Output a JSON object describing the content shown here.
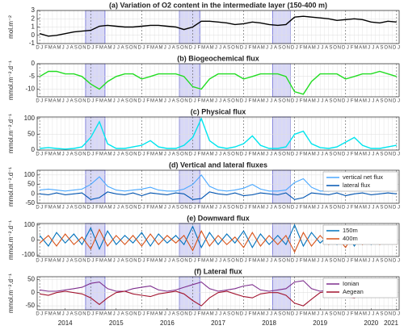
{
  "chart_data": [
    {
      "type": "line",
      "title": "(a) Variation of O2 content in the intermediate layer (150-400 m)",
      "ylabel": "mol.m⁻²",
      "months": [
        "J",
        "F",
        "M",
        "A",
        "M",
        "J",
        "J",
        "A",
        "S",
        "O",
        "N",
        "D"
      ],
      "x": [
        2014.0,
        2014.17,
        2014.33,
        2014.5,
        2014.67,
        2014.83,
        2015.0,
        2015.17,
        2015.33,
        2015.5,
        2015.67,
        2015.83,
        2016.0,
        2016.17,
        2016.33,
        2016.5,
        2016.67,
        2016.83,
        2017.0,
        2017.17,
        2017.33,
        2017.5,
        2017.67,
        2017.83,
        2018.0,
        2018.17,
        2018.33,
        2018.5,
        2018.67,
        2018.83,
        2019.0,
        2019.17,
        2019.33,
        2019.5,
        2019.67,
        2019.83,
        2020.0,
        2020.17,
        2020.33,
        2020.5,
        2020.67,
        2020.83,
        2021.0
      ],
      "series": [
        {
          "name": "O2",
          "color": "#000000",
          "values": [
            0.2,
            -0.1,
            0.0,
            0.2,
            0.4,
            0.5,
            0.6,
            1.1,
            1.2,
            1.1,
            1.0,
            1.0,
            1.1,
            1.2,
            1.2,
            1.1,
            1.0,
            0.7,
            1.0,
            1.7,
            1.7,
            1.6,
            1.5,
            1.3,
            1.4,
            1.6,
            1.5,
            1.3,
            1.2,
            1.3,
            2.2,
            2.3,
            2.2,
            2.1,
            2.0,
            1.8,
            1.9,
            2.0,
            1.9,
            1.6,
            1.5,
            1.7,
            1.6
          ]
        }
      ],
      "xlim": [
        2013.95,
        2021.05
      ],
      "ylim": [
        -1,
        3
      ],
      "yticks": [
        -1,
        0,
        1,
        2,
        3
      ],
      "highlights": [
        [
          2014.9,
          2015.28
        ],
        [
          2016.74,
          2017.14
        ],
        [
          2018.57,
          2018.92
        ]
      ],
      "grid": true
    },
    {
      "type": "line",
      "title": "(b) Biogeochemical flux",
      "ylabel": "mmol.m⁻².d⁻¹",
      "months": [
        "J",
        "F",
        "M",
        "A",
        "M",
        "J",
        "J",
        "A",
        "S",
        "O",
        "N",
        "D"
      ],
      "x": [
        2014.0,
        2014.17,
        2014.33,
        2014.5,
        2014.67,
        2014.83,
        2015.0,
        2015.17,
        2015.33,
        2015.5,
        2015.67,
        2015.83,
        2016.0,
        2016.17,
        2016.33,
        2016.5,
        2016.67,
        2016.83,
        2017.0,
        2017.17,
        2017.33,
        2017.5,
        2017.67,
        2017.83,
        2018.0,
        2018.17,
        2018.33,
        2018.5,
        2018.67,
        2018.83,
        2019.0,
        2019.17,
        2019.33,
        2019.5,
        2019.67,
        2019.83,
        2020.0,
        2020.17,
        2020.33,
        2020.5,
        2020.67,
        2020.83,
        2021.0
      ],
      "series": [
        {
          "name": "Biogeochemical",
          "color": "#22dd22",
          "values": [
            -5,
            -3,
            -3,
            -4,
            -4,
            -5,
            -8,
            -10,
            -7,
            -5,
            -4,
            -4,
            -6,
            -5,
            -4,
            -4,
            -4,
            -5,
            -9,
            -10,
            -6,
            -4,
            -4,
            -4,
            -6,
            -5,
            -4,
            -4,
            -4,
            -5,
            -11,
            -12,
            -7,
            -4,
            -4,
            -4,
            -6,
            -5,
            -4,
            -4,
            -3,
            -4,
            -5
          ]
        }
      ],
      "xlim": [
        2013.95,
        2021.05
      ],
      "ylim": [
        -13,
        0
      ],
      "yticks": [
        -10,
        -5,
        0
      ],
      "highlights": [
        [
          2014.9,
          2015.28
        ],
        [
          2016.74,
          2017.14
        ],
        [
          2018.57,
          2018.92
        ]
      ],
      "grid": true
    },
    {
      "type": "line",
      "title": "(c) Physical flux",
      "ylabel": "mmol.m⁻².d⁻¹",
      "months": [
        "J",
        "F",
        "M",
        "A",
        "M",
        "J",
        "J",
        "A",
        "S",
        "O",
        "N",
        "D"
      ],
      "x": [
        2014.0,
        2014.17,
        2014.33,
        2014.5,
        2014.67,
        2014.83,
        2015.0,
        2015.17,
        2015.33,
        2015.5,
        2015.67,
        2015.83,
        2016.0,
        2016.17,
        2016.33,
        2016.5,
        2016.67,
        2016.83,
        2017.0,
        2017.17,
        2017.33,
        2017.5,
        2017.67,
        2017.83,
        2018.0,
        2018.17,
        2018.33,
        2018.5,
        2018.67,
        2018.83,
        2019.0,
        2019.17,
        2019.33,
        2019.5,
        2019.67,
        2019.83,
        2020.0,
        2020.17,
        2020.33,
        2020.5,
        2020.67,
        2020.83,
        2021.0
      ],
      "series": [
        {
          "name": "Physical",
          "color": "#00e5ee",
          "values": [
            5,
            8,
            5,
            3,
            5,
            10,
            40,
            90,
            20,
            5,
            5,
            10,
            15,
            30,
            10,
            5,
            5,
            15,
            40,
            100,
            30,
            10,
            5,
            10,
            20,
            45,
            15,
            5,
            5,
            10,
            50,
            60,
            20,
            8,
            5,
            10,
            25,
            40,
            15,
            5,
            5,
            10,
            15
          ]
        }
      ],
      "xlim": [
        2013.95,
        2021.05
      ],
      "ylim": [
        0,
        105
      ],
      "yticks": [
        0,
        50,
        100
      ],
      "highlights": [
        [
          2014.9,
          2015.28
        ],
        [
          2016.74,
          2017.14
        ],
        [
          2018.57,
          2018.92
        ]
      ],
      "grid": true
    },
    {
      "type": "line",
      "title": "(d) Vertical and lateral fluxes",
      "ylabel": "mmol.m⁻².d⁻¹",
      "months": [
        "J",
        "F",
        "M",
        "A",
        "M",
        "J",
        "J",
        "A",
        "S",
        "O",
        "N",
        "D"
      ],
      "x": [
        2014.0,
        2014.17,
        2014.33,
        2014.5,
        2014.67,
        2014.83,
        2015.0,
        2015.17,
        2015.33,
        2015.5,
        2015.67,
        2015.83,
        2016.0,
        2016.17,
        2016.33,
        2016.5,
        2016.67,
        2016.83,
        2017.0,
        2017.17,
        2017.33,
        2017.5,
        2017.67,
        2017.83,
        2018.0,
        2018.17,
        2018.33,
        2018.5,
        2018.67,
        2018.83,
        2019.0,
        2019.17,
        2019.33,
        2019.5,
        2019.67,
        2019.83,
        2020.0,
        2020.17,
        2020.33,
        2020.5,
        2020.67,
        2020.83,
        2021.0
      ],
      "series": [
        {
          "name": "vertical net flux",
          "color": "#4aa8ff",
          "values": [
            20,
            25,
            20,
            15,
            20,
            25,
            50,
            90,
            40,
            20,
            15,
            20,
            25,
            35,
            20,
            15,
            15,
            25,
            50,
            100,
            40,
            20,
            15,
            20,
            30,
            50,
            25,
            15,
            15,
            20,
            60,
            80,
            35,
            15,
            15,
            20,
            30,
            40,
            20,
            15,
            15,
            20,
            20
          ]
        },
        {
          "name": "lateral flux",
          "color": "#0055b3",
          "values": [
            0,
            -5,
            5,
            -5,
            0,
            5,
            -30,
            -20,
            10,
            0,
            -5,
            5,
            -10,
            5,
            0,
            -5,
            5,
            0,
            -30,
            -25,
            10,
            0,
            -5,
            5,
            -10,
            -5,
            5,
            0,
            -5,
            5,
            -30,
            -20,
            5,
            0,
            -5,
            5,
            -10,
            0,
            5,
            -5,
            0,
            5,
            0
          ]
        }
      ],
      "xlim": [
        2013.95,
        2021.05
      ],
      "ylim": [
        -50,
        125
      ],
      "yticks": [
        -50,
        0,
        50,
        100
      ],
      "legend": "upper right",
      "highlights": [
        [
          2014.9,
          2015.28
        ],
        [
          2016.74,
          2017.14
        ],
        [
          2018.57,
          2018.92
        ]
      ],
      "grid": true
    },
    {
      "type": "line",
      "title": "(e) Downward flux",
      "ylabel": "mmol.m⁻².d⁻¹",
      "months": [
        "J",
        "F",
        "M",
        "A",
        "M",
        "J",
        "J",
        "A",
        "S",
        "O",
        "N",
        "D"
      ],
      "x": [
        2014.0,
        2014.17,
        2014.33,
        2014.5,
        2014.67,
        2014.83,
        2015.0,
        2015.17,
        2015.33,
        2015.5,
        2015.67,
        2015.83,
        2016.0,
        2016.17,
        2016.33,
        2016.5,
        2016.67,
        2016.83,
        2017.0,
        2017.17,
        2017.33,
        2017.5,
        2017.67,
        2017.83,
        2018.0,
        2018.17,
        2018.33,
        2018.5,
        2018.67,
        2018.83,
        2019.0,
        2019.17,
        2019.33,
        2019.5,
        2019.67,
        2019.83,
        2020.0,
        2020.17,
        2020.33,
        2020.5,
        2020.67,
        2020.83,
        2021.0
      ],
      "series": [
        {
          "name": "150m",
          "color": "#0072bd",
          "values": [
            30,
            -40,
            50,
            -20,
            40,
            -30,
            80,
            -60,
            60,
            -30,
            30,
            -20,
            50,
            -40,
            40,
            -20,
            30,
            -30,
            90,
            -50,
            50,
            -30,
            40,
            -20,
            60,
            -50,
            40,
            -30,
            30,
            -30,
            100,
            -40,
            50,
            -20,
            30,
            -30,
            60,
            -40,
            40,
            -30,
            30,
            -20,
            40
          ]
        },
        {
          "name": "400m",
          "color": "#d95319",
          "values": [
            -20,
            30,
            -40,
            40,
            -30,
            20,
            -60,
            70,
            -40,
            30,
            -30,
            30,
            -40,
            40,
            -30,
            30,
            -20,
            30,
            -70,
            60,
            -40,
            30,
            -30,
            20,
            -50,
            50,
            -40,
            30,
            -30,
            30,
            -80,
            50,
            -40,
            30,
            -30,
            20,
            -50,
            50,
            -30,
            30,
            -30,
            20,
            -30
          ]
        }
      ],
      "xlim": [
        2013.95,
        2021.05
      ],
      "ylim": [
        -110,
        110
      ],
      "yticks": [
        -100,
        0,
        100
      ],
      "legend": "upper right",
      "highlights": [
        [
          2014.9,
          2015.28
        ],
        [
          2016.74,
          2017.14
        ],
        [
          2018.57,
          2018.92
        ]
      ],
      "grid": true
    },
    {
      "type": "line",
      "title": "(f) Lateral flux",
      "ylabel": "mmol.m⁻².d⁻¹",
      "months": [
        "J",
        "F",
        "M",
        "A",
        "M",
        "J",
        "J",
        "A",
        "S",
        "O",
        "N",
        "D"
      ],
      "x": [
        2014.0,
        2014.17,
        2014.33,
        2014.5,
        2014.67,
        2014.83,
        2015.0,
        2015.17,
        2015.33,
        2015.5,
        2015.67,
        2015.83,
        2016.0,
        2016.17,
        2016.33,
        2016.5,
        2016.67,
        2016.83,
        2017.0,
        2017.17,
        2017.33,
        2017.5,
        2017.67,
        2017.83,
        2018.0,
        2018.17,
        2018.33,
        2018.5,
        2018.67,
        2018.83,
        2019.0,
        2019.17,
        2019.33,
        2019.5,
        2019.67,
        2019.83,
        2020.0,
        2020.17,
        2020.33,
        2020.5,
        2020.67,
        2020.83,
        2021.0
      ],
      "series": [
        {
          "name": "Ionian",
          "color": "#7e2f8e",
          "values": [
            10,
            5,
            5,
            10,
            15,
            20,
            35,
            40,
            15,
            5,
            5,
            15,
            20,
            25,
            10,
            5,
            10,
            20,
            30,
            40,
            15,
            5,
            10,
            15,
            25,
            30,
            10,
            5,
            10,
            15,
            40,
            45,
            15,
            5,
            10,
            20,
            25,
            30,
            10,
            5,
            10,
            15,
            15
          ]
        },
        {
          "name": "Aegean",
          "color": "#a2142f",
          "values": [
            -5,
            -10,
            0,
            5,
            0,
            -5,
            -20,
            -45,
            -20,
            0,
            5,
            -5,
            -10,
            -15,
            -5,
            0,
            5,
            -5,
            -30,
            -50,
            -20,
            0,
            5,
            -5,
            -15,
            -20,
            -5,
            0,
            0,
            -10,
            -40,
            -50,
            -25,
            0,
            5,
            -5,
            -15,
            -20,
            -5,
            0,
            5,
            -5,
            -5
          ]
        }
      ],
      "xlim": [
        2013.95,
        2021.05
      ],
      "ylim": [
        -65,
        60
      ],
      "yticks": [
        -50,
        0,
        50
      ],
      "legend": "upper right",
      "xticks": [
        {
          "value": 2014.5,
          "label": "2014"
        },
        {
          "value": 2015.5,
          "label": "2015"
        },
        {
          "value": 2016.5,
          "label": "2016"
        },
        {
          "value": 2017.5,
          "label": "2017"
        },
        {
          "value": 2018.5,
          "label": "2018"
        },
        {
          "value": 2019.5,
          "label": "2019"
        },
        {
          "value": 2020.5,
          "label": "2020"
        },
        2021
      ],
      "highlights": [
        [
          2014.9,
          2015.28
        ],
        [
          2016.74,
          2017.14
        ],
        [
          2018.57,
          2018.92
        ]
      ],
      "grid": true
    }
  ]
}
